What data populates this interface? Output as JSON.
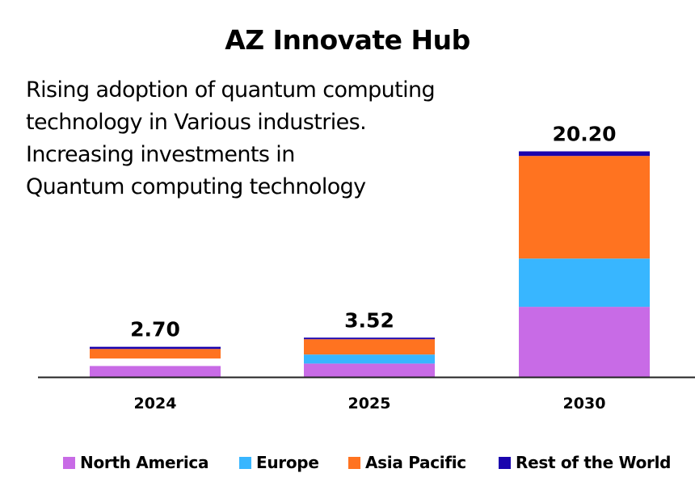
{
  "chart_data": {
    "type": "bar",
    "stacked": true,
    "title": "AZ Innovate Hub",
    "annotation_lines": [
      "Rising adoption of quantum computing",
      "technology in Various industries.",
      "Increasing investments in",
      "Quantum computing technology"
    ],
    "categories": [
      "2024",
      "2025",
      "2030"
    ],
    "totals": [
      "2.70",
      "3.52",
      "20.20"
    ],
    "series": [
      {
        "name": "North America",
        "color": "#C86BE6",
        "values": [
          0.99,
          1.2,
          6.28
        ]
      },
      {
        "name": "Europe",
        "color": "#38B6FF",
        "values": [
          0.66,
          0.81,
          4.32
        ],
        "rendered_colors": [
          "#FFFFFF",
          "#38B6FF",
          "#38B6FF"
        ]
      },
      {
        "name": "Asia Pacific",
        "color": "#FF7320",
        "values": [
          0.86,
          1.37,
          9.19
        ]
      },
      {
        "name": "Rest of the World",
        "color": "#1A04AE",
        "values": [
          0.19,
          0.14,
          0.41
        ]
      }
    ],
    "xlabel": "",
    "ylabel": "",
    "ylim": [
      0,
      20.2
    ],
    "grid": false,
    "y_axis_visible": false,
    "legend_position": "bottom"
  }
}
